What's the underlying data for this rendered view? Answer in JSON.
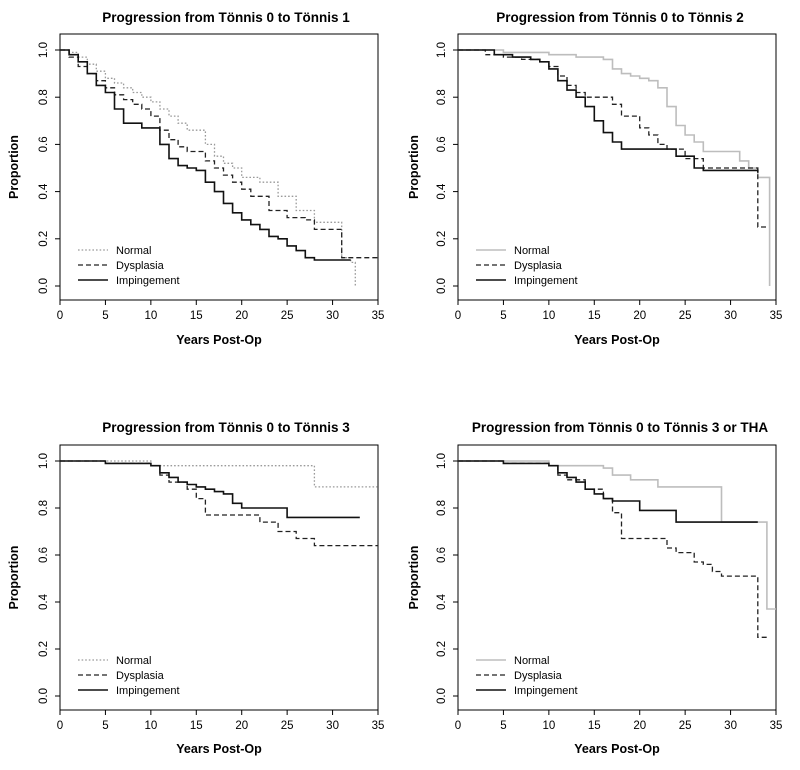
{
  "chart_data": [
    {
      "type": "line",
      "title": "Progression from Tönnis 0 to Tönnis 1",
      "xlabel": "Years Post-Op",
      "ylabel": "Proportion",
      "xlim": [
        0,
        35
      ],
      "ylim": [
        0,
        1
      ],
      "xticks": [
        "0",
        "5",
        "10",
        "15",
        "20",
        "25",
        "30",
        "35"
      ],
      "yticks": [
        "0.0",
        "0.2",
        "0.4",
        "0.6",
        "0.8",
        "1.0"
      ],
      "legend_position": "bottom-left",
      "series": [
        {
          "name": "Normal",
          "style": "dotted",
          "color": "#9a9a9a",
          "x": [
            0,
            1,
            2,
            3,
            4,
            5,
            6,
            7,
            8,
            9,
            10,
            11,
            12,
            13,
            14,
            15,
            16,
            17,
            18,
            19,
            20,
            22,
            24,
            26,
            28,
            31,
            32,
            32.5
          ],
          "y": [
            1.0,
            0.99,
            0.97,
            0.94,
            0.91,
            0.88,
            0.86,
            0.84,
            0.82,
            0.8,
            0.78,
            0.75,
            0.72,
            0.69,
            0.66,
            0.66,
            0.6,
            0.55,
            0.52,
            0.5,
            0.46,
            0.44,
            0.38,
            0.32,
            0.27,
            0.12,
            0.1,
            0.0
          ]
        },
        {
          "name": "Dysplasia",
          "style": "dashed",
          "color": "#222222",
          "x": [
            0,
            1,
            2,
            3,
            4,
            5,
            6,
            7,
            8,
            9,
            10,
            11,
            12,
            13,
            14,
            15,
            16,
            17,
            18,
            19,
            20,
            21,
            23,
            25,
            27,
            28,
            31,
            35
          ],
          "y": [
            1.0,
            0.97,
            0.93,
            0.9,
            0.87,
            0.84,
            0.81,
            0.79,
            0.77,
            0.75,
            0.72,
            0.66,
            0.62,
            0.59,
            0.57,
            0.57,
            0.53,
            0.5,
            0.47,
            0.44,
            0.41,
            0.38,
            0.32,
            0.29,
            0.28,
            0.24,
            0.12,
            0.12
          ]
        },
        {
          "name": "Impingement",
          "style": "solid",
          "color": "#111111",
          "x": [
            0,
            1,
            2,
            3,
            4,
            5,
            6,
            7,
            9,
            10,
            11,
            12,
            13,
            14,
            15,
            16,
            17,
            18,
            19,
            20,
            21,
            22,
            23,
            24,
            25,
            26,
            27,
            28,
            29,
            31,
            32
          ],
          "y": [
            1.0,
            0.98,
            0.95,
            0.9,
            0.85,
            0.82,
            0.75,
            0.69,
            0.67,
            0.67,
            0.6,
            0.54,
            0.51,
            0.5,
            0.49,
            0.44,
            0.4,
            0.35,
            0.31,
            0.28,
            0.26,
            0.24,
            0.21,
            0.2,
            0.17,
            0.15,
            0.12,
            0.11,
            0.11,
            0.11,
            0.11
          ]
        }
      ]
    },
    {
      "type": "line",
      "title": "Progression from Tönnis 0 to Tönnis 2",
      "xlabel": "Years Post-Op",
      "ylabel": "Proportion",
      "xlim": [
        0,
        35
      ],
      "ylim": [
        0,
        1
      ],
      "xticks": [
        "0",
        "5",
        "10",
        "15",
        "20",
        "25",
        "30",
        "35"
      ],
      "yticks": [
        "0.0",
        "0.2",
        "0.4",
        "0.6",
        "0.8",
        "1.0"
      ],
      "legend_position": "bottom-left",
      "series": [
        {
          "name": "Normal",
          "style": "solid",
          "color": "#bdbdbd",
          "x": [
            0,
            5,
            10,
            13,
            15,
            16,
            17,
            18,
            19,
            20,
            21,
            22,
            23,
            24,
            25,
            26,
            27,
            29,
            31,
            32,
            33,
            34,
            34.3
          ],
          "y": [
            1.0,
            0.99,
            0.98,
            0.97,
            0.97,
            0.96,
            0.92,
            0.9,
            0.89,
            0.88,
            0.87,
            0.84,
            0.76,
            0.68,
            0.64,
            0.61,
            0.57,
            0.57,
            0.53,
            0.5,
            0.46,
            0.46,
            0.0
          ]
        },
        {
          "name": "Dysplasia",
          "style": "dashed",
          "color": "#222222",
          "x": [
            0,
            3,
            5,
            7,
            9,
            10,
            11,
            12,
            13,
            14,
            15,
            16,
            17,
            18,
            20,
            21,
            22,
            23,
            25,
            27,
            33,
            34
          ],
          "y": [
            1.0,
            0.98,
            0.97,
            0.96,
            0.95,
            0.93,
            0.89,
            0.85,
            0.82,
            0.8,
            0.8,
            0.8,
            0.77,
            0.72,
            0.67,
            0.64,
            0.6,
            0.58,
            0.54,
            0.5,
            0.25,
            0.25
          ]
        },
        {
          "name": "Impingement",
          "style": "solid",
          "color": "#111111",
          "x": [
            0,
            4,
            5,
            6,
            8,
            9,
            10,
            11,
            12,
            13,
            14,
            15,
            16,
            17,
            18,
            20,
            24,
            25,
            26,
            27,
            33
          ],
          "y": [
            1.0,
            0.98,
            0.98,
            0.97,
            0.96,
            0.95,
            0.92,
            0.87,
            0.83,
            0.8,
            0.76,
            0.7,
            0.65,
            0.61,
            0.58,
            0.58,
            0.55,
            0.55,
            0.5,
            0.49,
            0.48
          ]
        }
      ]
    },
    {
      "type": "line",
      "title": "Progression from Tönnis 0 to Tönnis 3",
      "xlabel": "Years Post-Op",
      "ylabel": "Proportion",
      "xlim": [
        0,
        35
      ],
      "ylim": [
        0,
        1
      ],
      "xticks": [
        "0",
        "5",
        "10",
        "15",
        "20",
        "25",
        "30",
        "35"
      ],
      "yticks": [
        "0.0",
        "0.2",
        "0.4",
        "0.6",
        "0.8",
        "1.0"
      ],
      "legend_position": "bottom-left",
      "series": [
        {
          "name": "Normal",
          "style": "dotted",
          "color": "#9a9a9a",
          "x": [
            0,
            10,
            28,
            35
          ],
          "y": [
            1.0,
            0.98,
            0.89,
            0.89
          ]
        },
        {
          "name": "Dysplasia",
          "style": "dashed",
          "color": "#222222",
          "x": [
            0,
            5,
            10,
            11,
            12,
            14,
            15,
            16,
            18,
            22,
            24,
            26,
            28,
            35
          ],
          "y": [
            1.0,
            0.99,
            0.98,
            0.94,
            0.91,
            0.88,
            0.84,
            0.77,
            0.77,
            0.74,
            0.7,
            0.67,
            0.64,
            0.64
          ]
        },
        {
          "name": "Impingement",
          "style": "solid",
          "color": "#111111",
          "x": [
            0,
            5,
            10,
            11,
            12,
            13,
            14,
            15,
            16,
            17,
            18,
            19,
            20,
            21,
            23,
            25,
            33
          ],
          "y": [
            1.0,
            0.99,
            0.98,
            0.95,
            0.93,
            0.91,
            0.9,
            0.89,
            0.88,
            0.87,
            0.86,
            0.82,
            0.8,
            0.8,
            0.8,
            0.76,
            0.76
          ]
        }
      ]
    },
    {
      "type": "line",
      "title": "Progression from Tönnis 0 to Tönnis 3 or THA",
      "xlabel": "Years Post-Op",
      "ylabel": "Proportion",
      "xlim": [
        0,
        35
      ],
      "ylim": [
        0,
        1
      ],
      "xticks": [
        "0",
        "5",
        "10",
        "15",
        "20",
        "25",
        "30",
        "35"
      ],
      "yticks": [
        "0.0",
        "0.2",
        "0.4",
        "0.6",
        "0.8",
        "1.0"
      ],
      "legend_position": "bottom-left",
      "series": [
        {
          "name": "Normal",
          "style": "solid",
          "color": "#bdbdbd",
          "x": [
            0,
            10,
            16,
            17,
            19,
            22,
            25,
            28,
            29,
            33,
            34,
            35
          ],
          "y": [
            1.0,
            0.98,
            0.97,
            0.94,
            0.92,
            0.89,
            0.89,
            0.89,
            0.74,
            0.74,
            0.37,
            0.37
          ]
        },
        {
          "name": "Dysplasia",
          "style": "dashed",
          "color": "#222222",
          "x": [
            0,
            5,
            10,
            11,
            12,
            14,
            16,
            17,
            18,
            21,
            23,
            24,
            26,
            27,
            28,
            29,
            30,
            33,
            34
          ],
          "y": [
            1.0,
            0.99,
            0.98,
            0.94,
            0.92,
            0.88,
            0.84,
            0.78,
            0.67,
            0.67,
            0.63,
            0.61,
            0.57,
            0.56,
            0.53,
            0.51,
            0.51,
            0.25,
            0.25
          ]
        },
        {
          "name": "Impingement",
          "style": "solid",
          "color": "#111111",
          "x": [
            0,
            5,
            10,
            11,
            12,
            13,
            14,
            15,
            16,
            17,
            18,
            20,
            24,
            30,
            33
          ],
          "y": [
            1.0,
            0.99,
            0.98,
            0.95,
            0.93,
            0.91,
            0.88,
            0.86,
            0.84,
            0.83,
            0.83,
            0.79,
            0.74,
            0.74,
            0.74
          ]
        }
      ]
    }
  ]
}
